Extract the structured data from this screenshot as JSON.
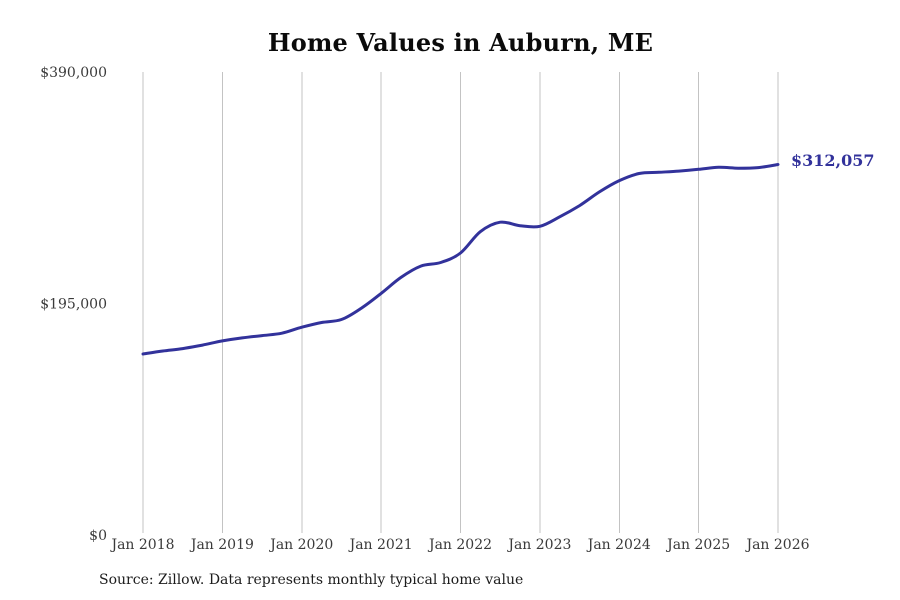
{
  "chart_data": {
    "type": "line",
    "title": "Home Values in Auburn, ME",
    "xlabel": "",
    "ylabel": "",
    "ylim": [
      0,
      390000
    ],
    "grid": "vertical-only",
    "legend": "none",
    "line_color": "#32329b",
    "grid_color": "#c3c3c3",
    "tick_color": "#3a3a3a",
    "end_label": "$312,057",
    "end_value": 312057,
    "x_tick_labels": [
      "Jan 2018",
      "Jan 2019",
      "Jan 2020",
      "Jan 2021",
      "Jan 2022",
      "Jan 2023",
      "Jan 2024",
      "Jan 2025",
      "Jan 2026"
    ],
    "x_tick_months": [
      0,
      12,
      24,
      36,
      48,
      60,
      72,
      84,
      96
    ],
    "y_ticks": [
      {
        "value": 0,
        "label": "$0"
      },
      {
        "value": 195000,
        "label": "$195,000"
      },
      {
        "value": 390000,
        "label": "$390,000"
      }
    ],
    "x_dates": [
      "2018-01",
      "2018-04",
      "2018-07",
      "2018-10",
      "2019-01",
      "2019-04",
      "2019-07",
      "2019-10",
      "2020-01",
      "2020-04",
      "2020-07",
      "2020-10",
      "2021-01",
      "2021-04",
      "2021-07",
      "2021-10",
      "2022-01",
      "2022-04",
      "2022-07",
      "2022-10",
      "2023-01",
      "2023-04",
      "2023-07",
      "2023-10",
      "2024-01",
      "2024-04",
      "2024-07",
      "2024-10",
      "2025-01",
      "2025-04",
      "2025-07",
      "2025-10",
      "2026-01"
    ],
    "x_months": [
      0,
      3,
      6,
      9,
      12,
      15,
      18,
      21,
      24,
      27,
      30,
      33,
      36,
      39,
      42,
      45,
      48,
      51,
      54,
      57,
      60,
      63,
      66,
      69,
      72,
      75,
      78,
      81,
      84,
      87,
      90,
      93,
      96
    ],
    "values": [
      152500,
      155000,
      157000,
      160000,
      163500,
      166000,
      168000,
      170000,
      175000,
      179000,
      181500,
      191000,
      203500,
      217000,
      226500,
      229500,
      237500,
      255500,
      263500,
      260500,
      260000,
      268000,
      277500,
      289000,
      298500,
      304500,
      305500,
      306500,
      308000,
      309700,
      309000,
      309500,
      312057
    ]
  },
  "footer": {
    "source": "Source: Zillow. Data represents monthly typical home value"
  }
}
